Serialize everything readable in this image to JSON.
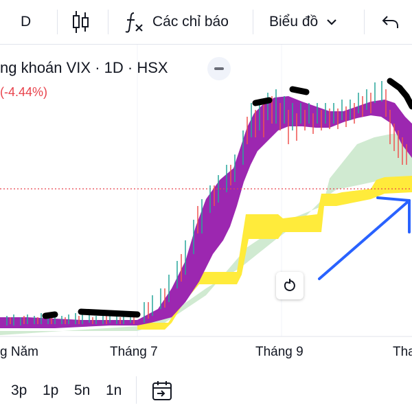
{
  "toolbar": {
    "interval_label": "D",
    "candle_type_icon": "candlestick-icon",
    "indicators_icon": "fx-icon",
    "indicators_label": "Các chỉ báo",
    "chart_menu_label": "Biểu đồ",
    "chart_menu_icon": "chevron-down-icon",
    "undo_icon": "undo-icon"
  },
  "legend": {
    "title": "ng khoán VIX · 1D · HSX",
    "change": "(-4.44%)"
  },
  "x_axis": {
    "labels": [
      "g Năm",
      "Tháng 7",
      "Tháng 9",
      "Tha"
    ]
  },
  "bottom_bar": {
    "ranges": [
      "3p",
      "1p",
      "5n",
      "1n"
    ],
    "goto_date_icon": "calendar-goto-icon"
  },
  "colors": {
    "accent_red": "#e8424b",
    "up_green": "#26a69a",
    "down_red": "#ef5350",
    "band_purple": "#9c27b0",
    "cloud_yellow": "#ffeb3b",
    "cloud_green": "#a5d6a7",
    "arrow_blue": "#2962ff",
    "annotation_black": "#000000"
  }
}
